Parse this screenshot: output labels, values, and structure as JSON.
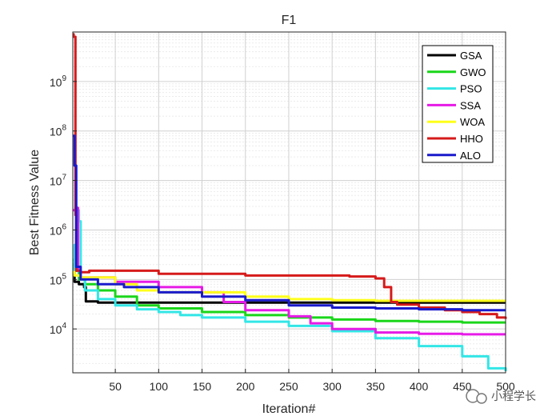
{
  "chart_data": {
    "type": "line",
    "title": "F1",
    "xlabel": "Iteration#",
    "ylabel": "Best Fitness Value",
    "xlim": [
      1,
      500
    ],
    "ylim": [
      1300,
      10000000000
    ],
    "yscale": "log",
    "grid": true,
    "x_ticks": [
      50,
      100,
      150,
      200,
      250,
      300,
      350,
      400,
      450,
      500
    ],
    "x_tick_labels": [
      "50",
      "100",
      "150",
      "200",
      "250",
      "300",
      "350",
      "400",
      "450",
      "500"
    ],
    "y_ticks": [
      10000,
      100000,
      1000000,
      10000000,
      100000000,
      1000000000
    ],
    "y_tick_bases": [
      "10",
      "10",
      "10",
      "10",
      "10",
      "10"
    ],
    "y_tick_exps": [
      "4",
      "5",
      "6",
      "7",
      "8",
      "9"
    ],
    "legend_position": "top-right",
    "series": [
      {
        "name": "GSA",
        "color": "#000000",
        "points": [
          [
            1,
            200000
          ],
          [
            3,
            90000
          ],
          [
            8,
            80000
          ],
          [
            14,
            70000
          ],
          [
            16,
            36000
          ],
          [
            30,
            34000
          ],
          [
            500,
            34000
          ]
        ]
      },
      {
        "name": "GWO",
        "color": "#1ad61a",
        "points": [
          [
            1,
            250000
          ],
          [
            3,
            150000
          ],
          [
            8,
            100000
          ],
          [
            15,
            80000
          ],
          [
            30,
            60000
          ],
          [
            50,
            45000
          ],
          [
            75,
            30000
          ],
          [
            100,
            26000
          ],
          [
            150,
            22000
          ],
          [
            200,
            19000
          ],
          [
            250,
            17000
          ],
          [
            300,
            15500
          ],
          [
            350,
            14500
          ],
          [
            400,
            14000
          ],
          [
            450,
            13500
          ],
          [
            500,
            13500
          ]
        ]
      },
      {
        "name": "PSO",
        "color": "#33e6e6",
        "points": [
          [
            1,
            150000
          ],
          [
            3,
            500000
          ],
          [
            5,
            2500000
          ],
          [
            8,
            1500000
          ],
          [
            10,
            100000
          ],
          [
            15,
            60000
          ],
          [
            30,
            40000
          ],
          [
            50,
            30000
          ],
          [
            75,
            25000
          ],
          [
            100,
            22000
          ],
          [
            125,
            19000
          ],
          [
            150,
            17000
          ],
          [
            200,
            14000
          ],
          [
            250,
            11500
          ],
          [
            300,
            9000
          ],
          [
            350,
            6500
          ],
          [
            400,
            4500
          ],
          [
            450,
            2800
          ],
          [
            480,
            1600
          ],
          [
            500,
            1400
          ]
        ]
      },
      {
        "name": "SSA",
        "color": "#e61ae6",
        "points": [
          [
            1,
            2500000
          ],
          [
            4,
            2800000
          ],
          [
            7,
            150000
          ],
          [
            10,
            110000
          ],
          [
            50,
            90000
          ],
          [
            100,
            70000
          ],
          [
            150,
            55000
          ],
          [
            175,
            35000
          ],
          [
            200,
            24000
          ],
          [
            250,
            18000
          ],
          [
            275,
            13000
          ],
          [
            300,
            10000
          ],
          [
            350,
            8500
          ],
          [
            400,
            8000
          ],
          [
            450,
            7800
          ],
          [
            500,
            7800
          ]
        ]
      },
      {
        "name": "WOA",
        "color": "#ffff1a",
        "points": [
          [
            1,
            140000
          ],
          [
            3,
            120000
          ],
          [
            10,
            110000
          ],
          [
            50,
            80000
          ],
          [
            75,
            60000
          ],
          [
            100,
            55000
          ],
          [
            150,
            55000
          ],
          [
            200,
            45000
          ],
          [
            250,
            40000
          ],
          [
            300,
            38000
          ],
          [
            350,
            37000
          ],
          [
            500,
            37000
          ]
        ]
      },
      {
        "name": "HHO",
        "color": "#d61a1a",
        "points": [
          [
            1,
            9000000000
          ],
          [
            2,
            8000000000
          ],
          [
            4,
            2000000
          ],
          [
            5,
            150000
          ],
          [
            10,
            140000
          ],
          [
            20,
            150000
          ],
          [
            50,
            150000
          ],
          [
            90,
            150000
          ],
          [
            100,
            130000
          ],
          [
            200,
            120000
          ],
          [
            250,
            120000
          ],
          [
            320,
            115000
          ],
          [
            350,
            105000
          ],
          [
            360,
            70000
          ],
          [
            368,
            35000
          ],
          [
            375,
            31000
          ],
          [
            400,
            27000
          ],
          [
            430,
            24000
          ],
          [
            450,
            22000
          ],
          [
            470,
            20000
          ],
          [
            490,
            17000
          ],
          [
            500,
            16000
          ]
        ]
      },
      {
        "name": "ALO",
        "color": "#1a1acc",
        "points": [
          [
            1,
            80000000
          ],
          [
            3,
            20000000
          ],
          [
            5,
            180000
          ],
          [
            10,
            100000
          ],
          [
            30,
            80000
          ],
          [
            60,
            70000
          ],
          [
            100,
            55000
          ],
          [
            150,
            45000
          ],
          [
            200,
            38000
          ],
          [
            250,
            30000
          ],
          [
            300,
            27000
          ],
          [
            350,
            26000
          ],
          [
            400,
            25000
          ],
          [
            450,
            24000
          ],
          [
            500,
            24000
          ]
        ]
      }
    ]
  },
  "watermark": {
    "text": "小程学长"
  }
}
